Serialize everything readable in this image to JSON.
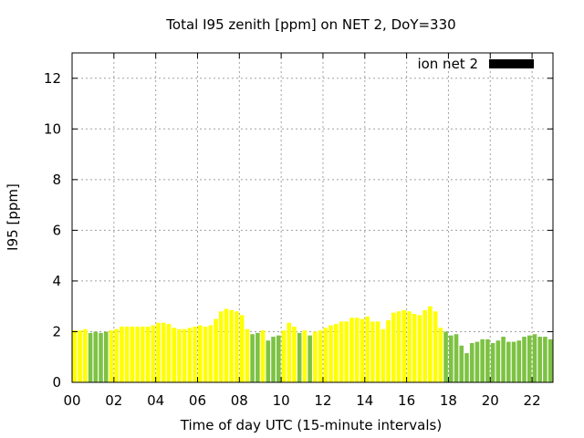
{
  "chart_data": {
    "type": "bar",
    "title": "Total I95 zenith [ppm] on NET 2, DoY=330",
    "xlabel": "Time of day UTC (15-minute intervals)",
    "ylabel": "I95 [ppm]",
    "xlim": [
      0,
      23.0
    ],
    "ylim": [
      0,
      13
    ],
    "grid": true,
    "legend": {
      "position": "top-right",
      "label": "ion net 2",
      "color": "#000000"
    },
    "x_ticks": [
      {
        "value": 0,
        "label": "00"
      },
      {
        "value": 2,
        "label": "02"
      },
      {
        "value": 4,
        "label": "04"
      },
      {
        "value": 6,
        "label": "06"
      },
      {
        "value": 8,
        "label": "08"
      },
      {
        "value": 10,
        "label": "10"
      },
      {
        "value": 12,
        "label": "12"
      },
      {
        "value": 14,
        "label": "14"
      },
      {
        "value": 16,
        "label": "16"
      },
      {
        "value": 18,
        "label": "18"
      },
      {
        "value": 20,
        "label": "20"
      },
      {
        "value": 22,
        "label": "22"
      }
    ],
    "y_ticks": [
      {
        "value": 0,
        "label": "0"
      },
      {
        "value": 2,
        "label": "2"
      },
      {
        "value": 4,
        "label": "4"
      },
      {
        "value": 6,
        "label": "6"
      },
      {
        "value": 8,
        "label": "8"
      },
      {
        "value": 10,
        "label": "10"
      },
      {
        "value": 12,
        "label": "12"
      }
    ],
    "bar_interval_hours": 0.25,
    "bar_width_hours": 0.2,
    "colors": {
      "yellow": "#ffff00",
      "green": "#7dc242"
    },
    "bars": [
      {
        "v": 2.05,
        "c": "yellow"
      },
      {
        "v": 2.05,
        "c": "yellow"
      },
      {
        "v": 2.1,
        "c": "yellow"
      },
      {
        "v": 1.95,
        "c": "green"
      },
      {
        "v": 2.0,
        "c": "green"
      },
      {
        "v": 1.95,
        "c": "green"
      },
      {
        "v": 2.0,
        "c": "green"
      },
      {
        "v": 2.05,
        "c": "yellow"
      },
      {
        "v": 2.1,
        "c": "yellow"
      },
      {
        "v": 2.2,
        "c": "yellow"
      },
      {
        "v": 2.2,
        "c": "yellow"
      },
      {
        "v": 2.2,
        "c": "yellow"
      },
      {
        "v": 2.2,
        "c": "yellow"
      },
      {
        "v": 2.2,
        "c": "yellow"
      },
      {
        "v": 2.2,
        "c": "yellow"
      },
      {
        "v": 2.25,
        "c": "yellow"
      },
      {
        "v": 2.35,
        "c": "yellow"
      },
      {
        "v": 2.35,
        "c": "yellow"
      },
      {
        "v": 2.3,
        "c": "yellow"
      },
      {
        "v": 2.15,
        "c": "yellow"
      },
      {
        "v": 2.1,
        "c": "yellow"
      },
      {
        "v": 2.1,
        "c": "yellow"
      },
      {
        "v": 2.15,
        "c": "yellow"
      },
      {
        "v": 2.2,
        "c": "yellow"
      },
      {
        "v": 2.25,
        "c": "yellow"
      },
      {
        "v": 2.2,
        "c": "yellow"
      },
      {
        "v": 2.25,
        "c": "yellow"
      },
      {
        "v": 2.5,
        "c": "yellow"
      },
      {
        "v": 2.8,
        "c": "yellow"
      },
      {
        "v": 2.9,
        "c": "yellow"
      },
      {
        "v": 2.85,
        "c": "yellow"
      },
      {
        "v": 2.8,
        "c": "yellow"
      },
      {
        "v": 2.65,
        "c": "yellow"
      },
      {
        "v": 2.1,
        "c": "yellow"
      },
      {
        "v": 1.9,
        "c": "green"
      },
      {
        "v": 1.95,
        "c": "green"
      },
      {
        "v": 2.05,
        "c": "yellow"
      },
      {
        "v": 1.65,
        "c": "green"
      },
      {
        "v": 1.8,
        "c": "green"
      },
      {
        "v": 1.85,
        "c": "green"
      },
      {
        "v": 2.05,
        "c": "yellow"
      },
      {
        "v": 2.35,
        "c": "yellow"
      },
      {
        "v": 2.2,
        "c": "yellow"
      },
      {
        "v": 1.95,
        "c": "green"
      },
      {
        "v": 2.05,
        "c": "yellow"
      },
      {
        "v": 1.85,
        "c": "green"
      },
      {
        "v": 2.0,
        "c": "yellow"
      },
      {
        "v": 2.05,
        "c": "yellow"
      },
      {
        "v": 2.15,
        "c": "yellow"
      },
      {
        "v": 2.25,
        "c": "yellow"
      },
      {
        "v": 2.3,
        "c": "yellow"
      },
      {
        "v": 2.4,
        "c": "yellow"
      },
      {
        "v": 2.4,
        "c": "yellow"
      },
      {
        "v": 2.55,
        "c": "yellow"
      },
      {
        "v": 2.55,
        "c": "yellow"
      },
      {
        "v": 2.5,
        "c": "yellow"
      },
      {
        "v": 2.6,
        "c": "yellow"
      },
      {
        "v": 2.4,
        "c": "yellow"
      },
      {
        "v": 2.4,
        "c": "yellow"
      },
      {
        "v": 2.1,
        "c": "yellow"
      },
      {
        "v": 2.45,
        "c": "yellow"
      },
      {
        "v": 2.75,
        "c": "yellow"
      },
      {
        "v": 2.8,
        "c": "yellow"
      },
      {
        "v": 2.85,
        "c": "yellow"
      },
      {
        "v": 2.8,
        "c": "yellow"
      },
      {
        "v": 2.7,
        "c": "yellow"
      },
      {
        "v": 2.65,
        "c": "yellow"
      },
      {
        "v": 2.85,
        "c": "yellow"
      },
      {
        "v": 3.0,
        "c": "yellow"
      },
      {
        "v": 2.8,
        "c": "yellow"
      },
      {
        "v": 2.15,
        "c": "yellow"
      },
      {
        "v": 2.0,
        "c": "green"
      },
      {
        "v": 1.85,
        "c": "green"
      },
      {
        "v": 1.9,
        "c": "green"
      },
      {
        "v": 1.45,
        "c": "green"
      },
      {
        "v": 1.15,
        "c": "green"
      },
      {
        "v": 1.55,
        "c": "green"
      },
      {
        "v": 1.6,
        "c": "green"
      },
      {
        "v": 1.7,
        "c": "green"
      },
      {
        "v": 1.7,
        "c": "green"
      },
      {
        "v": 1.55,
        "c": "green"
      },
      {
        "v": 1.65,
        "c": "green"
      },
      {
        "v": 1.8,
        "c": "green"
      },
      {
        "v": 1.6,
        "c": "green"
      },
      {
        "v": 1.6,
        "c": "green"
      },
      {
        "v": 1.65,
        "c": "green"
      },
      {
        "v": 1.8,
        "c": "green"
      },
      {
        "v": 1.85,
        "c": "green"
      },
      {
        "v": 1.9,
        "c": "green"
      },
      {
        "v": 1.8,
        "c": "green"
      },
      {
        "v": 1.8,
        "c": "green"
      },
      {
        "v": 1.7,
        "c": "green"
      }
    ]
  }
}
